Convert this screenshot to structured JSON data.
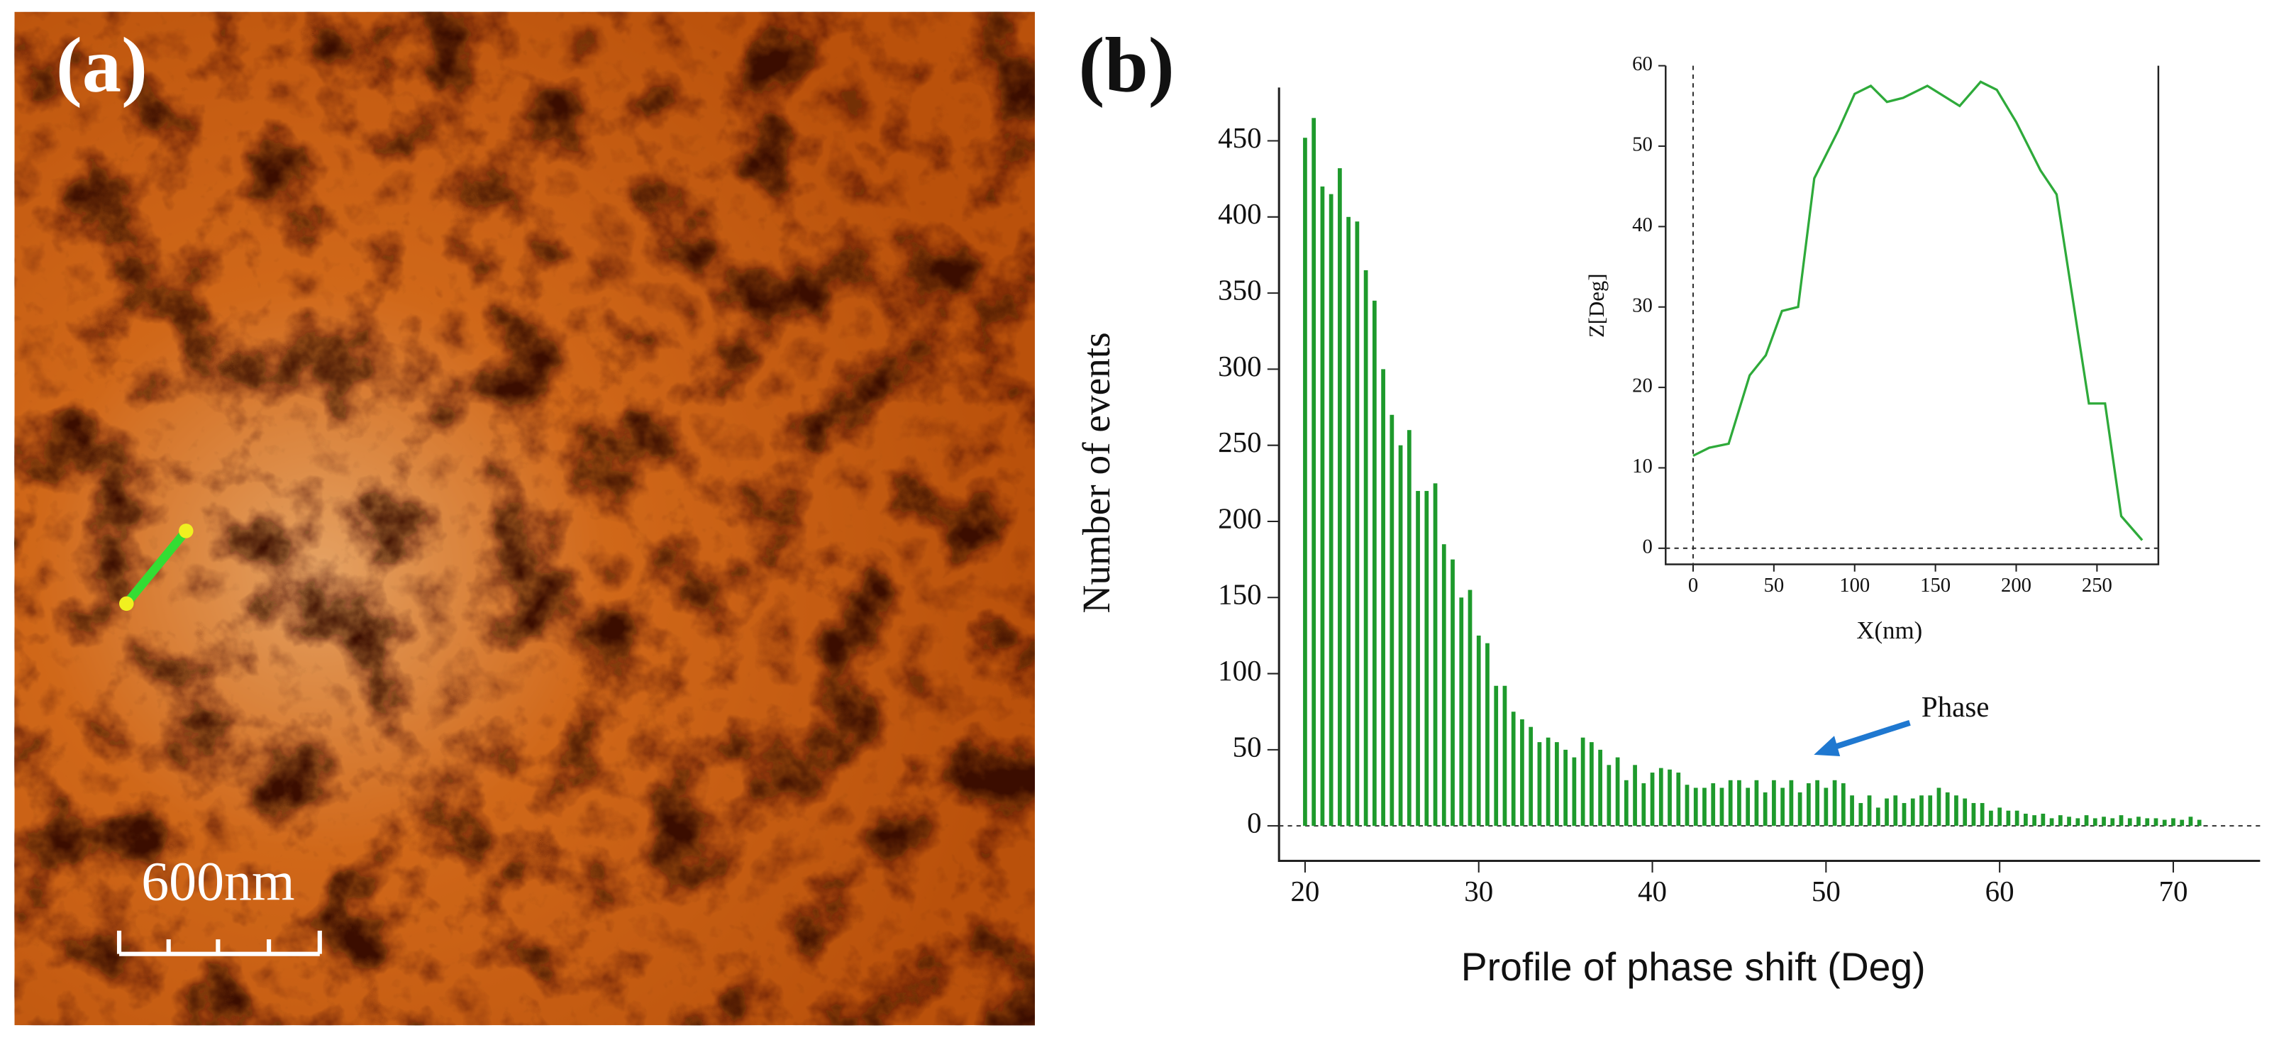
{
  "panel_labels": [
    "(a)",
    "(b)"
  ],
  "scale_bar": "600nm",
  "chart_data": [
    {
      "type": "bar",
      "x_label": "Profile of phase shift (Deg)",
      "y_label": "Number of events",
      "annotation": "Phase",
      "color": "#1e9a2c",
      "x": [
        20,
        20.5,
        21,
        21.5,
        22,
        22.5,
        23,
        23.5,
        24,
        24.5,
        25,
        25.5,
        26,
        26.5,
        27,
        27.5,
        28,
        28.5,
        29,
        29.5,
        30,
        30.5,
        31,
        31.5,
        32,
        32.5,
        33,
        33.5,
        34,
        34.5,
        35,
        35.5,
        36,
        36.5,
        37,
        37.5,
        38,
        38.5,
        39,
        39.5,
        40,
        40.5,
        41,
        41.5,
        42,
        42.5,
        43,
        43.5,
        44,
        44.5,
        45,
        45.5,
        46,
        46.5,
        47,
        47.5,
        48,
        48.5,
        49,
        49.5,
        50,
        50.5,
        51,
        51.5,
        52,
        52.5,
        53,
        53.5,
        54,
        54.5,
        55,
        55.5,
        56,
        56.5,
        57,
        57.5,
        58,
        58.5,
        59,
        59.5,
        60,
        60.5,
        61,
        61.5,
        62,
        62.5,
        63,
        63.5,
        64,
        64.5,
        65,
        65.5,
        66,
        66.5,
        67,
        67.5,
        68,
        68.5,
        69,
        69.5,
        70,
        70.5,
        71,
        71.5
      ],
      "values": [
        452,
        465,
        420,
        415,
        432,
        400,
        397,
        365,
        345,
        300,
        270,
        250,
        260,
        220,
        220,
        225,
        185,
        175,
        150,
        155,
        125,
        120,
        92,
        92,
        75,
        70,
        65,
        55,
        58,
        55,
        50,
        45,
        58,
        55,
        50,
        40,
        45,
        30,
        40,
        28,
        35,
        38,
        37,
        35,
        27,
        25,
        25,
        28,
        25,
        30,
        30,
        25,
        30,
        22,
        30,
        25,
        30,
        22,
        28,
        30,
        25,
        30,
        28,
        20,
        15,
        20,
        12,
        18,
        20,
        15,
        18,
        20,
        20,
        25,
        22,
        20,
        18,
        15,
        15,
        10,
        12,
        10,
        10,
        8,
        7,
        8,
        5,
        7,
        6,
        5,
        7,
        5,
        6,
        5,
        7,
        5,
        6,
        5,
        5,
        4,
        5,
        4,
        6,
        4
      ],
      "xlim": [
        18.5,
        75
      ],
      "ylim": [
        -23,
        485
      ],
      "xticks": [
        20,
        30,
        40,
        50,
        60,
        70
      ],
      "yticks": [
        0,
        50,
        100,
        150,
        200,
        250,
        300,
        350,
        400,
        450
      ]
    },
    {
      "type": "line",
      "x_label": "X(nm)",
      "y_label": "Z[Deg]",
      "color": "#2eaa3a",
      "x": [
        0,
        10,
        22,
        35,
        45,
        55,
        65,
        75,
        90,
        100,
        110,
        120,
        130,
        145,
        165,
        178,
        188,
        200,
        215,
        225,
        245,
        255,
        265,
        278
      ],
      "values": [
        11.5,
        12.5,
        13,
        21.5,
        24,
        29.5,
        30,
        46,
        52,
        56.5,
        57.5,
        55.5,
        56,
        57.5,
        55,
        58,
        57,
        53,
        47,
        44,
        18,
        18,
        4,
        1
      ],
      "xlim": [
        -17,
        288
      ],
      "ylim": [
        -2,
        60
      ],
      "xticks": [
        0,
        50,
        100,
        150,
        200,
        250
      ],
      "yticks": [
        0,
        10,
        20,
        30,
        40,
        50,
        60
      ]
    }
  ]
}
